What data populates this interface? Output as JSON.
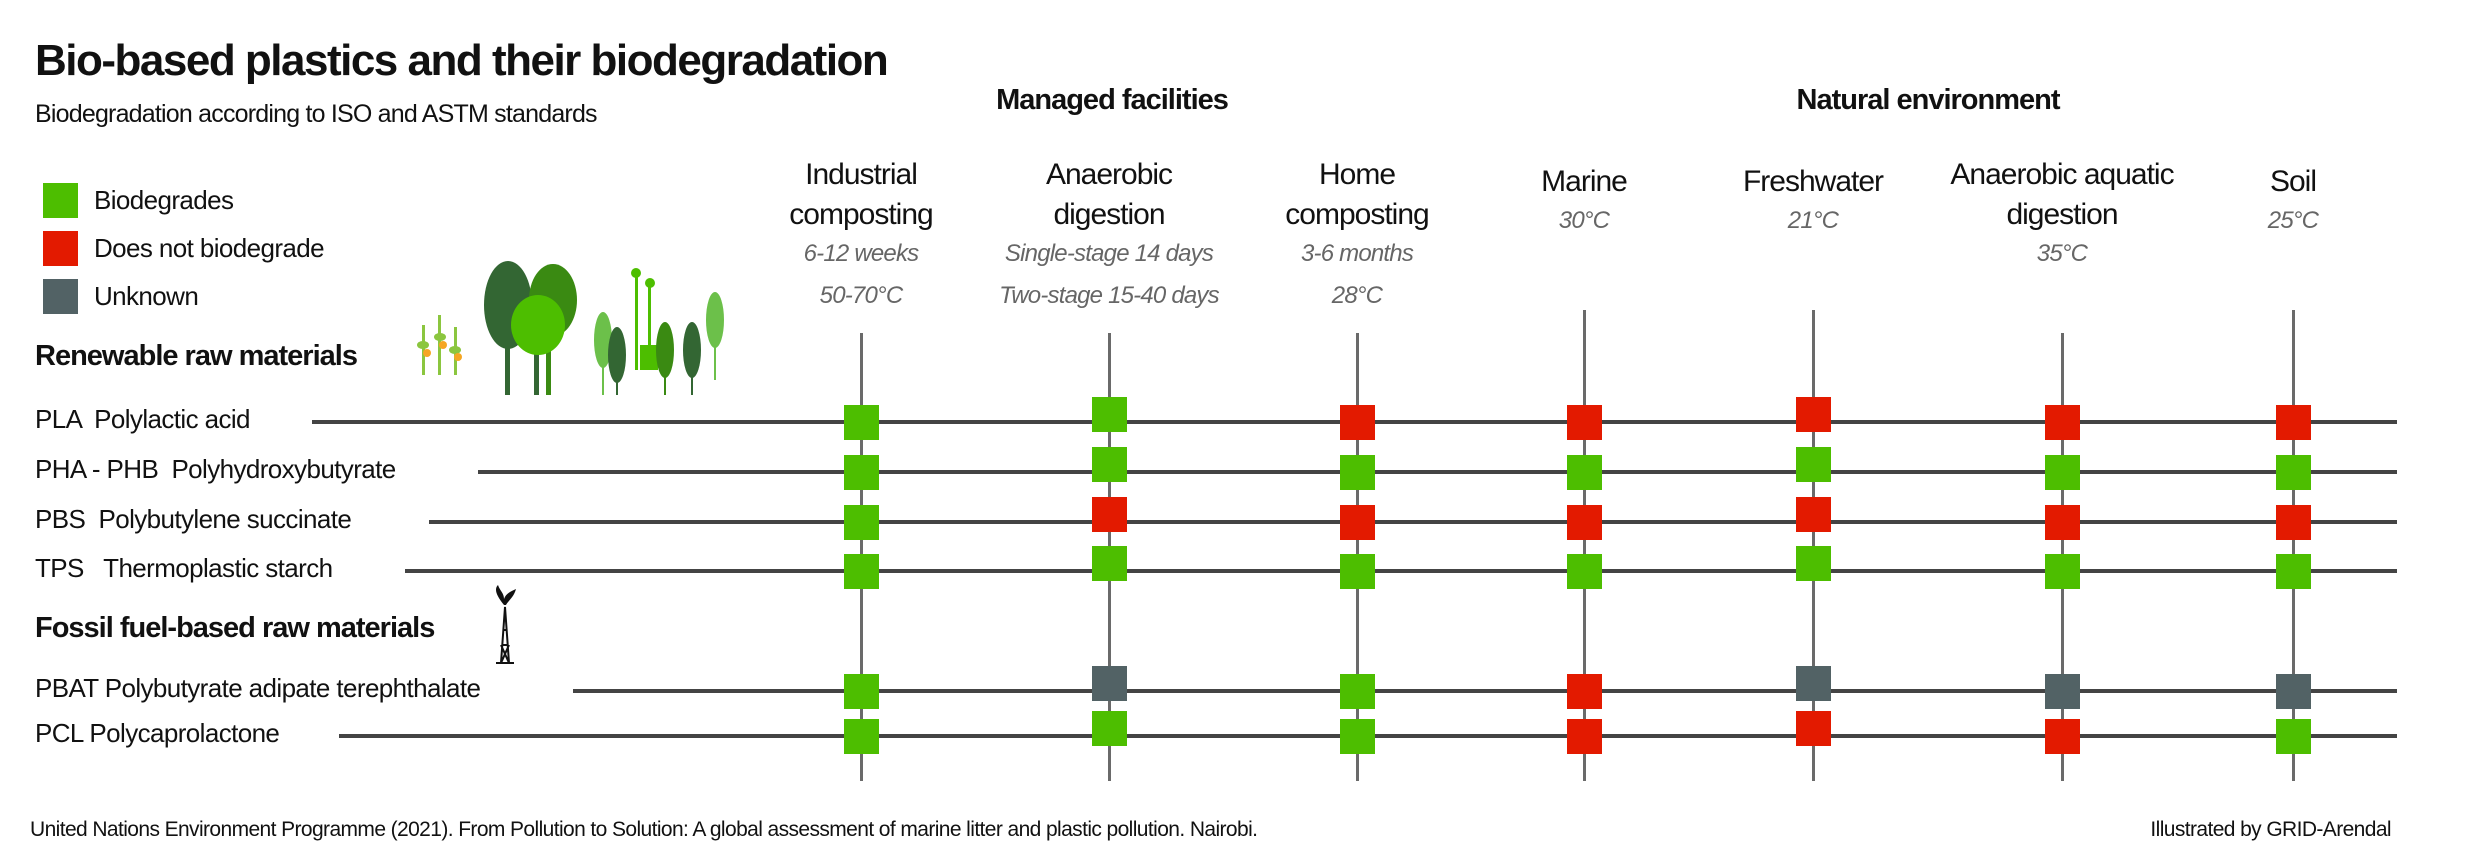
{
  "title": "Bio-based plastics and their biodegradation",
  "subtitle": "Biodegradation according to ISO and ASTM standards",
  "colors": {
    "biodegrades": "#4dbe00",
    "does_not": "#e31a00",
    "unknown": "#526265"
  },
  "legend": [
    {
      "key": "G",
      "label": "Biodegrades",
      "color": "#4dbe00"
    },
    {
      "key": "R",
      "label": "Does not biodegrade",
      "color": "#e31a00"
    },
    {
      "key": "U",
      "label": "Unknown",
      "color": "#526265"
    }
  ],
  "groups": {
    "managed": "Managed facilities",
    "natural": "Natural environment"
  },
  "columns": [
    {
      "name": [
        "Industrial",
        "composting"
      ],
      "details": [
        "6-12 weeks",
        "50-70°C"
      ]
    },
    {
      "name": [
        "Anaerobic",
        "digestion"
      ],
      "details": [
        "Single-stage 14 days",
        "Two-stage 15-40 days"
      ]
    },
    {
      "name": [
        "Home",
        "composting"
      ],
      "details": [
        "3-6 months",
        "28°C"
      ]
    },
    {
      "name": [
        "Marine"
      ],
      "details": [
        "30°C"
      ]
    },
    {
      "name": [
        "Freshwater"
      ],
      "details": [
        "21°C"
      ]
    },
    {
      "name": [
        "Anaerobic aquatic",
        "digestion"
      ],
      "details": [
        "35°C"
      ]
    },
    {
      "name": [
        "Soil"
      ],
      "details": [
        "25°C"
      ]
    }
  ],
  "sections": {
    "renewable": "Renewable raw materials",
    "fossil": "Fossil fuel-based raw materials"
  },
  "rows": [
    {
      "label": "PLA  Polylactic acid",
      "values": [
        "G",
        "G",
        "R",
        "R",
        "R",
        "R",
        "R"
      ]
    },
    {
      "label": "PHA - PHB  Polyhydroxybutyrate",
      "values": [
        "G",
        "G",
        "G",
        "G",
        "G",
        "G",
        "G"
      ]
    },
    {
      "label": "PBS  Polybutylene succinate",
      "values": [
        "G",
        "R",
        "R",
        "R",
        "R",
        "R",
        "R"
      ]
    },
    {
      "label": "TPS   Thermoplastic starch",
      "values": [
        "G",
        "G",
        "G",
        "G",
        "G",
        "G",
        "G"
      ]
    },
    {
      "label": "PBAT Polybutyrate adipate terephthalate",
      "values": [
        "G",
        "U",
        "G",
        "R",
        "U",
        "U",
        "U"
      ]
    },
    {
      "label": "PCL Polycaprolactone",
      "values": [
        "G",
        "G",
        "G",
        "R",
        "R",
        "R",
        "G"
      ]
    }
  ],
  "footer": {
    "source": "United Nations Environment Programme (2021). From Pollution to Solution: A global assessment of marine litter and plastic pollution. Nairobi.",
    "credit": "Illustrated by GRID-Arendal"
  }
}
